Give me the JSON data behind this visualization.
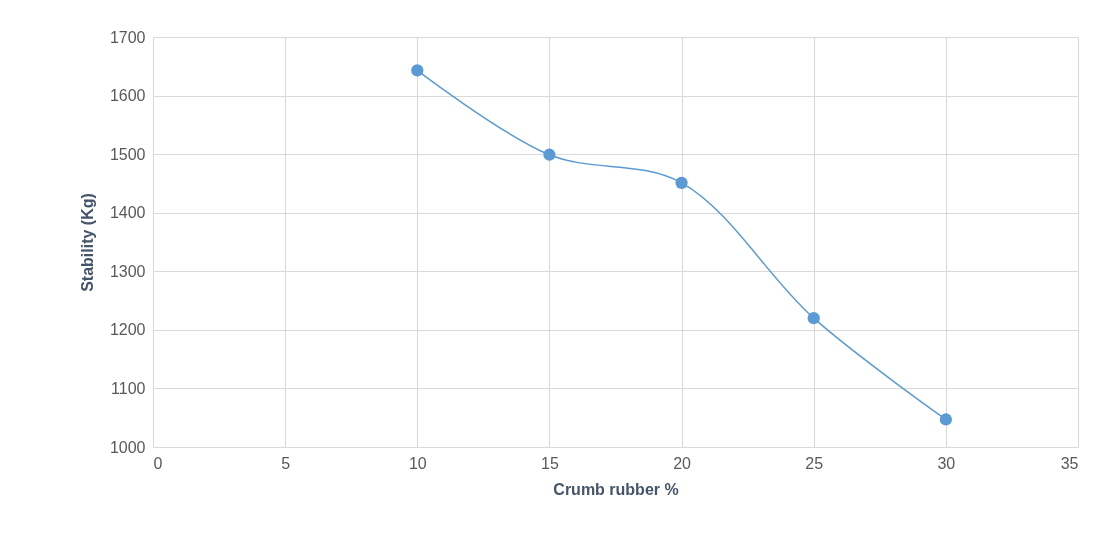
{
  "chart_data": {
    "type": "line",
    "xlabel": "Crumb rubber %",
    "ylabel": "Stability (Kg)",
    "x": [
      10,
      15,
      20,
      25,
      30
    ],
    "series": [
      {
        "color": "#5b9bd5",
        "values": [
          1643,
          1499,
          1451,
          1220,
          1047
        ]
      }
    ],
    "xlim": [
      0,
      35
    ],
    "xticks": [
      0,
      5,
      10,
      15,
      20,
      25,
      30,
      35
    ],
    "ylim": [
      1000,
      1700
    ],
    "yticks": [
      1000,
      1100,
      1200,
      1300,
      1400,
      1500,
      1600,
      1700
    ],
    "grid": true,
    "marker": "circle",
    "line_style": "solid",
    "legend": false
  }
}
